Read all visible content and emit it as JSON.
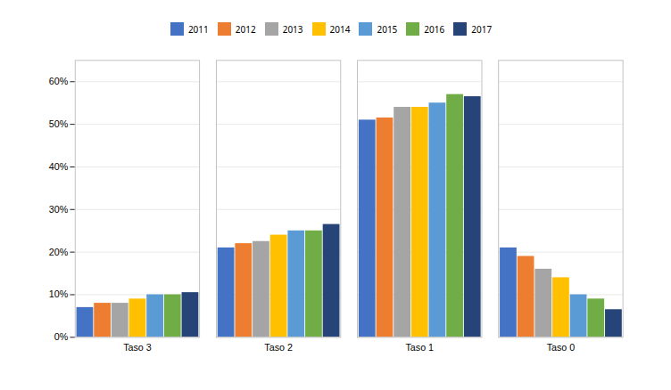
{
  "chart_data": {
    "type": "bar",
    "categories": [
      "Taso 3",
      "Taso 2",
      "Taso 1",
      "Taso 0"
    ],
    "series": [
      {
        "name": "2011",
        "color": "#4472C4",
        "values": [
          7.0,
          21.0,
          51.0,
          21.0
        ]
      },
      {
        "name": "2012",
        "color": "#ED7D31",
        "values": [
          8.0,
          22.0,
          51.5,
          19.0
        ]
      },
      {
        "name": "2013",
        "color": "#A5A5A5",
        "values": [
          8.0,
          22.5,
          54.0,
          16.0
        ]
      },
      {
        "name": "2014",
        "color": "#FFC000",
        "values": [
          9.0,
          24.0,
          54.0,
          14.0
        ]
      },
      {
        "name": "2015",
        "color": "#5B9BD5",
        "values": [
          10.0,
          25.0,
          55.0,
          10.0
        ]
      },
      {
        "name": "2016",
        "color": "#70AD47",
        "values": [
          10.0,
          25.0,
          57.0,
          9.0
        ]
      },
      {
        "name": "2017",
        "color": "#264478",
        "values": [
          10.5,
          26.5,
          56.5,
          6.5
        ]
      }
    ],
    "ylim": [
      0,
      65
    ],
    "yticks": [
      {
        "value": 0,
        "label": "0%"
      },
      {
        "value": 10,
        "label": "10%"
      },
      {
        "value": 20,
        "label": "20%"
      },
      {
        "value": 30,
        "label": "30%"
      },
      {
        "value": 40,
        "label": "40%"
      },
      {
        "value": 50,
        "label": "50%"
      },
      {
        "value": 60,
        "label": "60%"
      }
    ],
    "grid": true,
    "legend": "top"
  }
}
